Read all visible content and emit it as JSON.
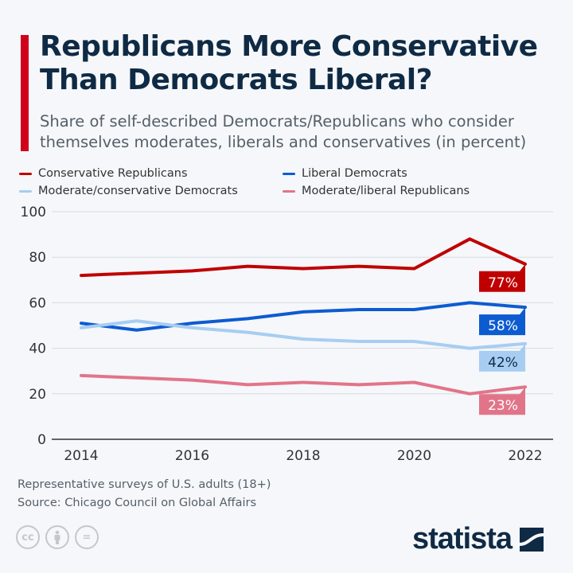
{
  "header": {
    "title": "Republicans More Conservative Than Democrats Liberal?",
    "subtitle": "Share of self-described Democrats/Republicans who consider themselves moderates, liberals and conservatives (in percent)"
  },
  "chart_data": {
    "type": "line",
    "title": "Republicans More Conservative Than Democrats Liberal?",
    "x": [
      2014,
      2015,
      2016,
      2017,
      2018,
      2019,
      2020,
      2021,
      2022
    ],
    "x_ticks": [
      "2014",
      "2016",
      "2018",
      "2020",
      "2022"
    ],
    "y_ticks": [
      "0",
      "20",
      "40",
      "60",
      "80",
      "100"
    ],
    "ylim": [
      0,
      100
    ],
    "grid": true,
    "legend": "top",
    "series": [
      {
        "name": "Conservative Republicans",
        "color": "#c00000",
        "values": [
          72,
          73,
          74,
          76,
          75,
          76,
          75,
          88,
          77
        ],
        "end_label": "77%",
        "label_text_color": "#ffffff"
      },
      {
        "name": "Liberal Democrats",
        "color": "#0d5bd1",
        "values": [
          51,
          48,
          51,
          53,
          56,
          57,
          57,
          60,
          58
        ],
        "end_label": "58%",
        "label_text_color": "#ffffff"
      },
      {
        "name": "Moderate/conservative Democrats",
        "color": "#a7cdf2",
        "values": [
          49,
          52,
          49,
          47,
          44,
          43,
          43,
          40,
          42
        ],
        "end_label": "42%",
        "label_text_color": "#0f2a44"
      },
      {
        "name": "Moderate/liberal Republicans",
        "color": "#e2748a",
        "values": [
          28,
          27,
          26,
          24,
          25,
          24,
          25,
          20,
          23
        ],
        "end_label": "23%",
        "label_text_color": "#ffffff"
      }
    ]
  },
  "footer": {
    "note": "Representative surveys of U.S. adults (18+)",
    "source": "Source: Chicago Council on Global Affairs",
    "license_icons": [
      "cc",
      "by",
      "nd"
    ],
    "cc_label": "cc",
    "nd_label": "=",
    "brand": "statista"
  }
}
